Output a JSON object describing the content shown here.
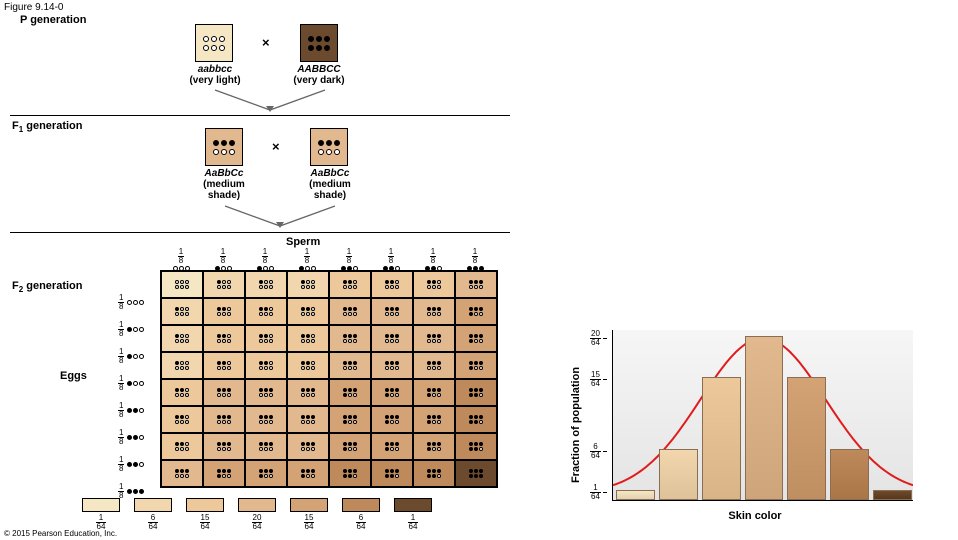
{
  "figure_label": "Figure 9.14-0",
  "generations": {
    "p": "P generation",
    "f1": "F<sub>1</sub> generation",
    "f2": "F<sub>2</sub> generation",
    "eggs": "Eggs",
    "sperm": "Sperm"
  },
  "parents": {
    "light": {
      "genotype": "aabbcc",
      "desc": "(very light)",
      "color": "#f6e7c4"
    },
    "dark": {
      "genotype": "AABBCC",
      "desc": "(very dark)",
      "color": "#6b4a2e"
    }
  },
  "f1": {
    "genotype": "AaBbCc",
    "desc": "(medium shade)",
    "color": "#e2b98f"
  },
  "allele_colors": {
    "empty": "#ffffff",
    "filled": "#000000"
  },
  "gamete_fraction_label": {
    "num": "1",
    "den": "8"
  },
  "gametes_filled": [
    0,
    1,
    1,
    1,
    2,
    2,
    2,
    3
  ],
  "shades": [
    "#f6e7c4",
    "#f1d6ae",
    "#ecc89a",
    "#e2b98f",
    "#d3a275",
    "#be895b",
    "#6b4a2e"
  ],
  "legend_fracs": [
    {
      "num": "1",
      "den": "64"
    },
    {
      "num": "6",
      "den": "64"
    },
    {
      "num": "15",
      "den": "64"
    },
    {
      "num": "20",
      "den": "64"
    },
    {
      "num": "15",
      "den": "64"
    },
    {
      "num": "6",
      "den": "64"
    },
    {
      "num": "1",
      "den": "64"
    }
  ],
  "chart": {
    "ylabel": "Fraction of population",
    "xlabel": "Skin color",
    "yticks": [
      {
        "num": "20",
        "den": "64"
      },
      {
        "num": "15",
        "den": "64"
      },
      {
        "num": "6",
        "den": "64"
      },
      {
        "num": "1",
        "den": "64"
      }
    ],
    "heights": [
      1,
      6,
      15,
      20,
      15,
      6,
      1
    ],
    "barColors": [
      "#f6e7c4",
      "#f1d6ae",
      "#ecc89a",
      "#e2b98f",
      "#d3a275",
      "#be895b",
      "#6b4a2e"
    ],
    "curveColor": "#e11b1b",
    "curveWidth": 2,
    "background_top": "#f6f6f6",
    "background_bottom": "#e4e4e4"
  },
  "copyright": "© 2015 Pearson Education, Inc."
}
